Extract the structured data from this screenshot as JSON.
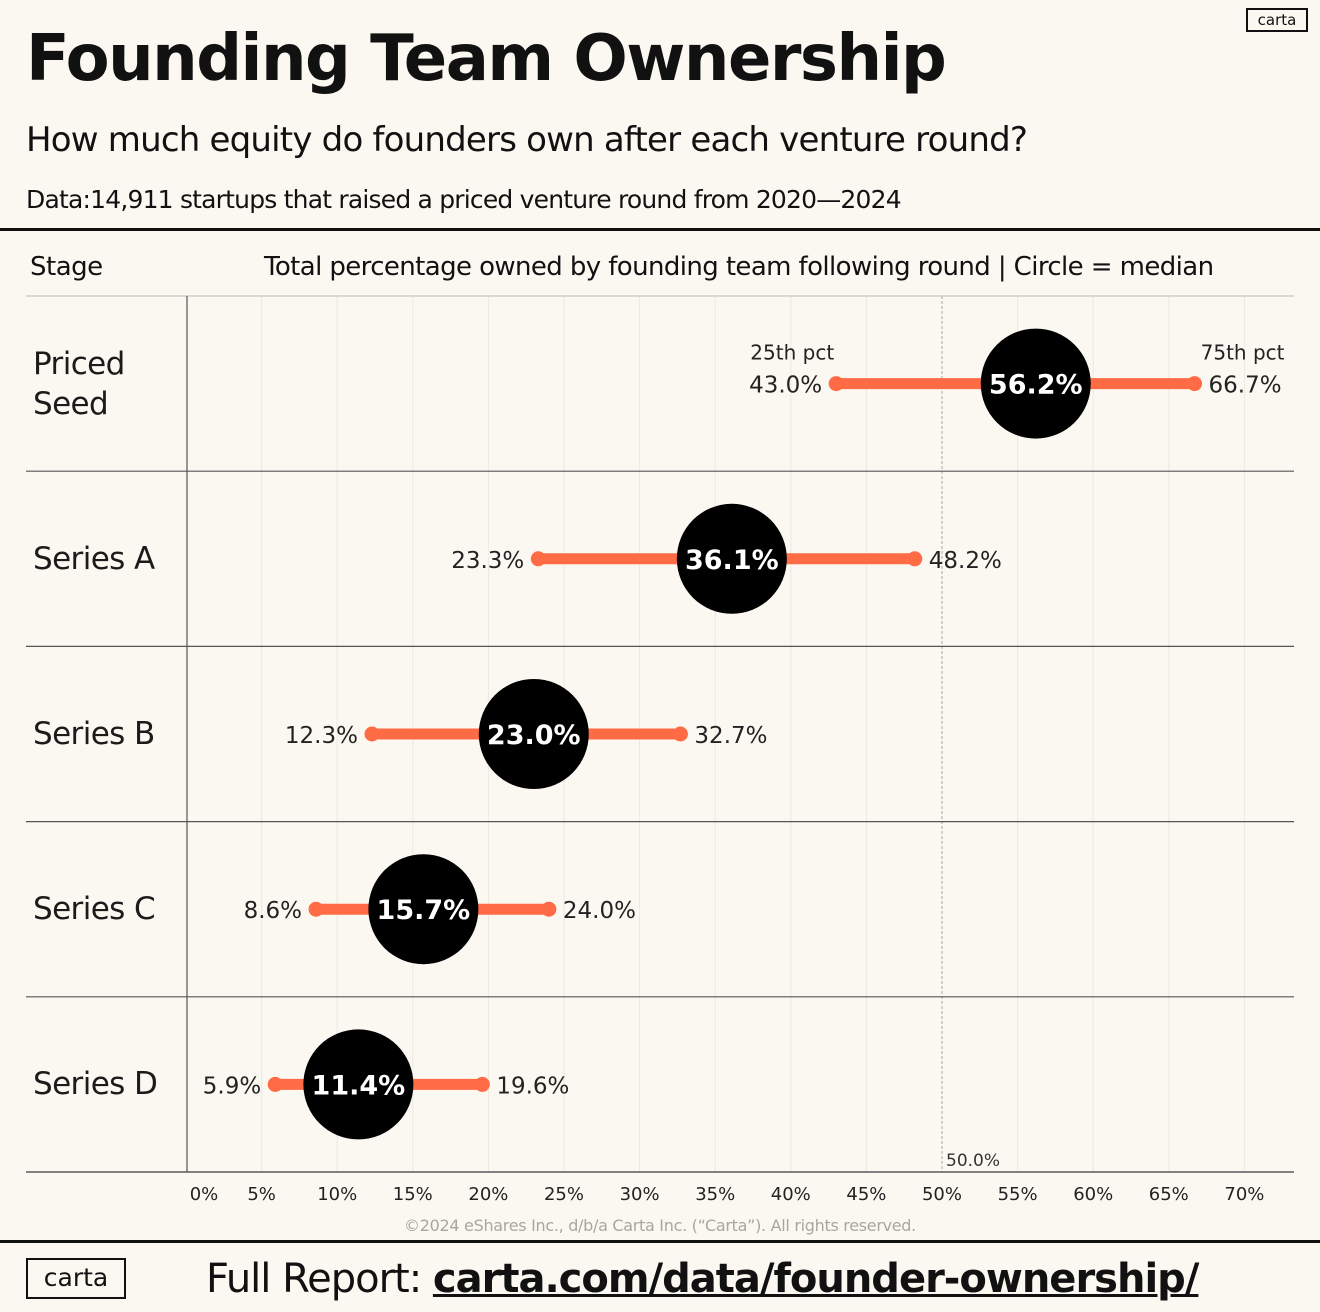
{
  "brand": {
    "logo_text": "carta"
  },
  "header": {
    "title": "Founding Team Ownership",
    "subtitle": "How much equity do founders own after each venture round?",
    "data_note": "Data:14,911 startups that raised a priced venture round from 2020—2024"
  },
  "table": {
    "stage_header": "Stage",
    "desc_header": "Total percentage owned by founding team following round | Circle = median"
  },
  "chart_data": {
    "type": "range-dot",
    "title": "Founding Team Ownership",
    "xlabel": "Total percentage owned by founding team following round",
    "xlim": [
      0,
      70
    ],
    "x_ticks": [
      "0%",
      "5%",
      "10%",
      "15%",
      "20%",
      "25%",
      "30%",
      "35%",
      "40%",
      "45%",
      "50%",
      "55%",
      "60%",
      "65%",
      "70%"
    ],
    "reference_line": {
      "value": 50.0,
      "label": "50.0%"
    },
    "p25_label": "25th pct",
    "p75_label": "75th pct",
    "stages": [
      {
        "name": "Priced\nSeed",
        "p25": 43.0,
        "median": 56.2,
        "p75": 66.7,
        "p25_text": "43.0%",
        "median_text": "56.2%",
        "p75_text": "66.7%"
      },
      {
        "name": "Series A",
        "p25": 23.3,
        "median": 36.1,
        "p75": 48.2,
        "p25_text": "23.3%",
        "median_text": "36.1%",
        "p75_text": "48.2%"
      },
      {
        "name": "Series B",
        "p25": 12.3,
        "median": 23.0,
        "p75": 32.7,
        "p25_text": "12.3%",
        "median_text": "23.0%",
        "p75_text": "32.7%"
      },
      {
        "name": "Series C",
        "p25": 8.6,
        "median": 15.7,
        "p75": 24.0,
        "p25_text": "8.6%",
        "median_text": "15.7%",
        "p75_text": "24.0%"
      },
      {
        "name": "Series D",
        "p25": 5.9,
        "median": 11.4,
        "p75": 19.6,
        "p25_text": "5.9%",
        "median_text": "11.4%",
        "p75_text": "19.6%"
      }
    ],
    "colors": {
      "range_bar": "#ff6b45",
      "median_dot": "#000000",
      "median_text": "#ffffff"
    }
  },
  "footer": {
    "copyright": "©2024 eShares Inc., d/b/a Carta Inc. (“Carta”). All rights reserved.",
    "report_prefix": "Full Report: ",
    "report_url": "carta.com/data/founder-ownership/"
  }
}
